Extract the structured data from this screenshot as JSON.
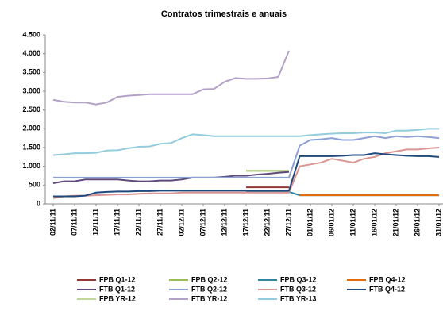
{
  "chart_data": {
    "type": "line",
    "title": "Contratos trimestrais  e anuais",
    "categories": [
      "02/11/11",
      null,
      "07/11/11",
      null,
      "12/11/11",
      null,
      "17/11/11",
      null,
      "22/11/11",
      null,
      "27/11/11",
      null,
      "02/12/11",
      null,
      "07/12/11",
      null,
      "12/12/11",
      null,
      "17/12/11",
      null,
      "22/12/11",
      null,
      "27/12/11",
      null,
      "01/01/12",
      null,
      "06/01/12",
      null,
      "11/01/12",
      null,
      "16/01/12",
      null,
      "21/01/12",
      null,
      "26/01/12",
      null,
      "31/01/12"
    ],
    "ylim": [
      0,
      4500
    ],
    "yticks": [
      0,
      {
        "value": 500,
        "label": "500"
      },
      {
        "value": 1000,
        "label": "1.000"
      },
      {
        "value": 1500,
        "label": "1.500"
      },
      {
        "value": 2000,
        "label": "2.000"
      },
      {
        "value": 2500,
        "label": "2.500"
      },
      {
        "value": 3000,
        "label": "3.000"
      },
      {
        "value": 3500,
        "label": "3.500"
      },
      {
        "value": 4000,
        "label": "4.000"
      },
      {
        "value": 4500,
        "label": "4.500"
      }
    ],
    "grid": false,
    "series": [
      {
        "name": "FPB Q1-12",
        "color": "#953735",
        "values": [
          null,
          null,
          null,
          null,
          null,
          null,
          null,
          null,
          null,
          null,
          null,
          null,
          null,
          null,
          null,
          null,
          null,
          null,
          440,
          440,
          440,
          440,
          440,
          null,
          null,
          null,
          null,
          null,
          null,
          null,
          null,
          null,
          null,
          null,
          null,
          null,
          null
        ]
      },
      {
        "name": "FPB Q2-12",
        "color": "#9bbb59",
        "values": [
          null,
          null,
          null,
          null,
          null,
          null,
          null,
          null,
          null,
          null,
          null,
          null,
          null,
          null,
          null,
          null,
          null,
          null,
          880,
          880,
          880,
          880,
          880,
          null,
          null,
          null,
          null,
          null,
          null,
          null,
          null,
          null,
          null,
          null,
          null,
          null,
          null
        ]
      },
      {
        "name": "FPB Q3-12",
        "color": "#31859c",
        "values": [
          null,
          null,
          null,
          null,
          null,
          null,
          null,
          null,
          null,
          null,
          null,
          null,
          null,
          null,
          null,
          null,
          null,
          null,
          320,
          320,
          320,
          320,
          320,
          230,
          230,
          230,
          230,
          230,
          230,
          230,
          230,
          230,
          230,
          230,
          230,
          230,
          230
        ]
      },
      {
        "name": "FPB Q4-12",
        "color": "#e46c0a",
        "values": [
          null,
          null,
          null,
          null,
          null,
          null,
          null,
          null,
          null,
          null,
          null,
          null,
          null,
          null,
          null,
          null,
          null,
          null,
          null,
          null,
          null,
          null,
          null,
          230,
          230,
          230,
          230,
          230,
          230,
          230,
          230,
          230,
          230,
          230,
          230,
          230,
          230
        ]
      },
      {
        "name": "FTB Q1-12",
        "color": "#604a7b",
        "values": [
          550,
          600,
          600,
          650,
          650,
          650,
          650,
          620,
          600,
          600,
          620,
          620,
          650,
          700,
          700,
          700,
          720,
          750,
          750,
          780,
          800,
          830,
          850,
          null,
          null,
          null,
          null,
          null,
          null,
          null,
          null,
          null,
          null,
          null,
          null,
          null,
          null
        ]
      },
      {
        "name": "FTB Q2-12",
        "color": "#8ea0d4",
        "values": [
          700,
          700,
          700,
          700,
          700,
          700,
          700,
          700,
          700,
          700,
          700,
          700,
          700,
          700,
          700,
          700,
          700,
          700,
          700,
          700,
          700,
          700,
          700,
          1550,
          1700,
          1720,
          1750,
          1700,
          1700,
          1750,
          1800,
          1750,
          1800,
          1780,
          1800,
          1780,
          1750
        ]
      },
      {
        "name": "FTB Q3-12",
        "color": "#d99694",
        "values": [
          150,
          200,
          220,
          220,
          230,
          240,
          250,
          250,
          270,
          280,
          280,
          280,
          300,
          300,
          300,
          300,
          300,
          300,
          300,
          300,
          300,
          300,
          300,
          1000,
          1050,
          1100,
          1200,
          1150,
          1100,
          1200,
          1250,
          1350,
          1400,
          1450,
          1450,
          1480,
          1500
        ]
      },
      {
        "name": "FTB Q4-12",
        "color": "#1f497d",
        "values": [
          200,
          200,
          200,
          220,
          300,
          320,
          330,
          330,
          340,
          340,
          350,
          350,
          350,
          350,
          350,
          350,
          350,
          350,
          350,
          350,
          350,
          350,
          350,
          1270,
          1270,
          1270,
          1270,
          1280,
          1300,
          1300,
          1350,
          1320,
          1300,
          1280,
          1270,
          1270,
          1250
        ]
      },
      {
        "name": "FPB YR-12",
        "color": "#c3d69b",
        "values": [
          null,
          null,
          null,
          null,
          null,
          null,
          null,
          null,
          null,
          null,
          null,
          null,
          null,
          null,
          null,
          null,
          null,
          null,
          null,
          null,
          null,
          null,
          null,
          null,
          null,
          null,
          null,
          null,
          null,
          null,
          null,
          null,
          null,
          null,
          null,
          null,
          null
        ]
      },
      {
        "name": "FTB YR-12",
        "color": "#b3a2c7",
        "values": [
          2770,
          2720,
          2700,
          2700,
          2650,
          2700,
          2850,
          2880,
          2900,
          2920,
          2920,
          2920,
          2920,
          2920,
          3050,
          3060,
          3250,
          3350,
          3330,
          3330,
          3340,
          3380,
          4080,
          null,
          null,
          null,
          null,
          null,
          null,
          null,
          null,
          null,
          null,
          null,
          null,
          null,
          null
        ]
      },
      {
        "name": "FTB YR-13",
        "color": "#93cddd",
        "values": [
          1300,
          1320,
          1350,
          1350,
          1360,
          1420,
          1430,
          1480,
          1520,
          1530,
          1600,
          1620,
          1750,
          1850,
          1830,
          1800,
          1800,
          1800,
          1800,
          1800,
          1800,
          1800,
          1800,
          1800,
          1830,
          1850,
          1870,
          1880,
          1880,
          1900,
          1900,
          1880,
          1950,
          1950,
          1970,
          2000,
          2000
        ]
      }
    ]
  }
}
